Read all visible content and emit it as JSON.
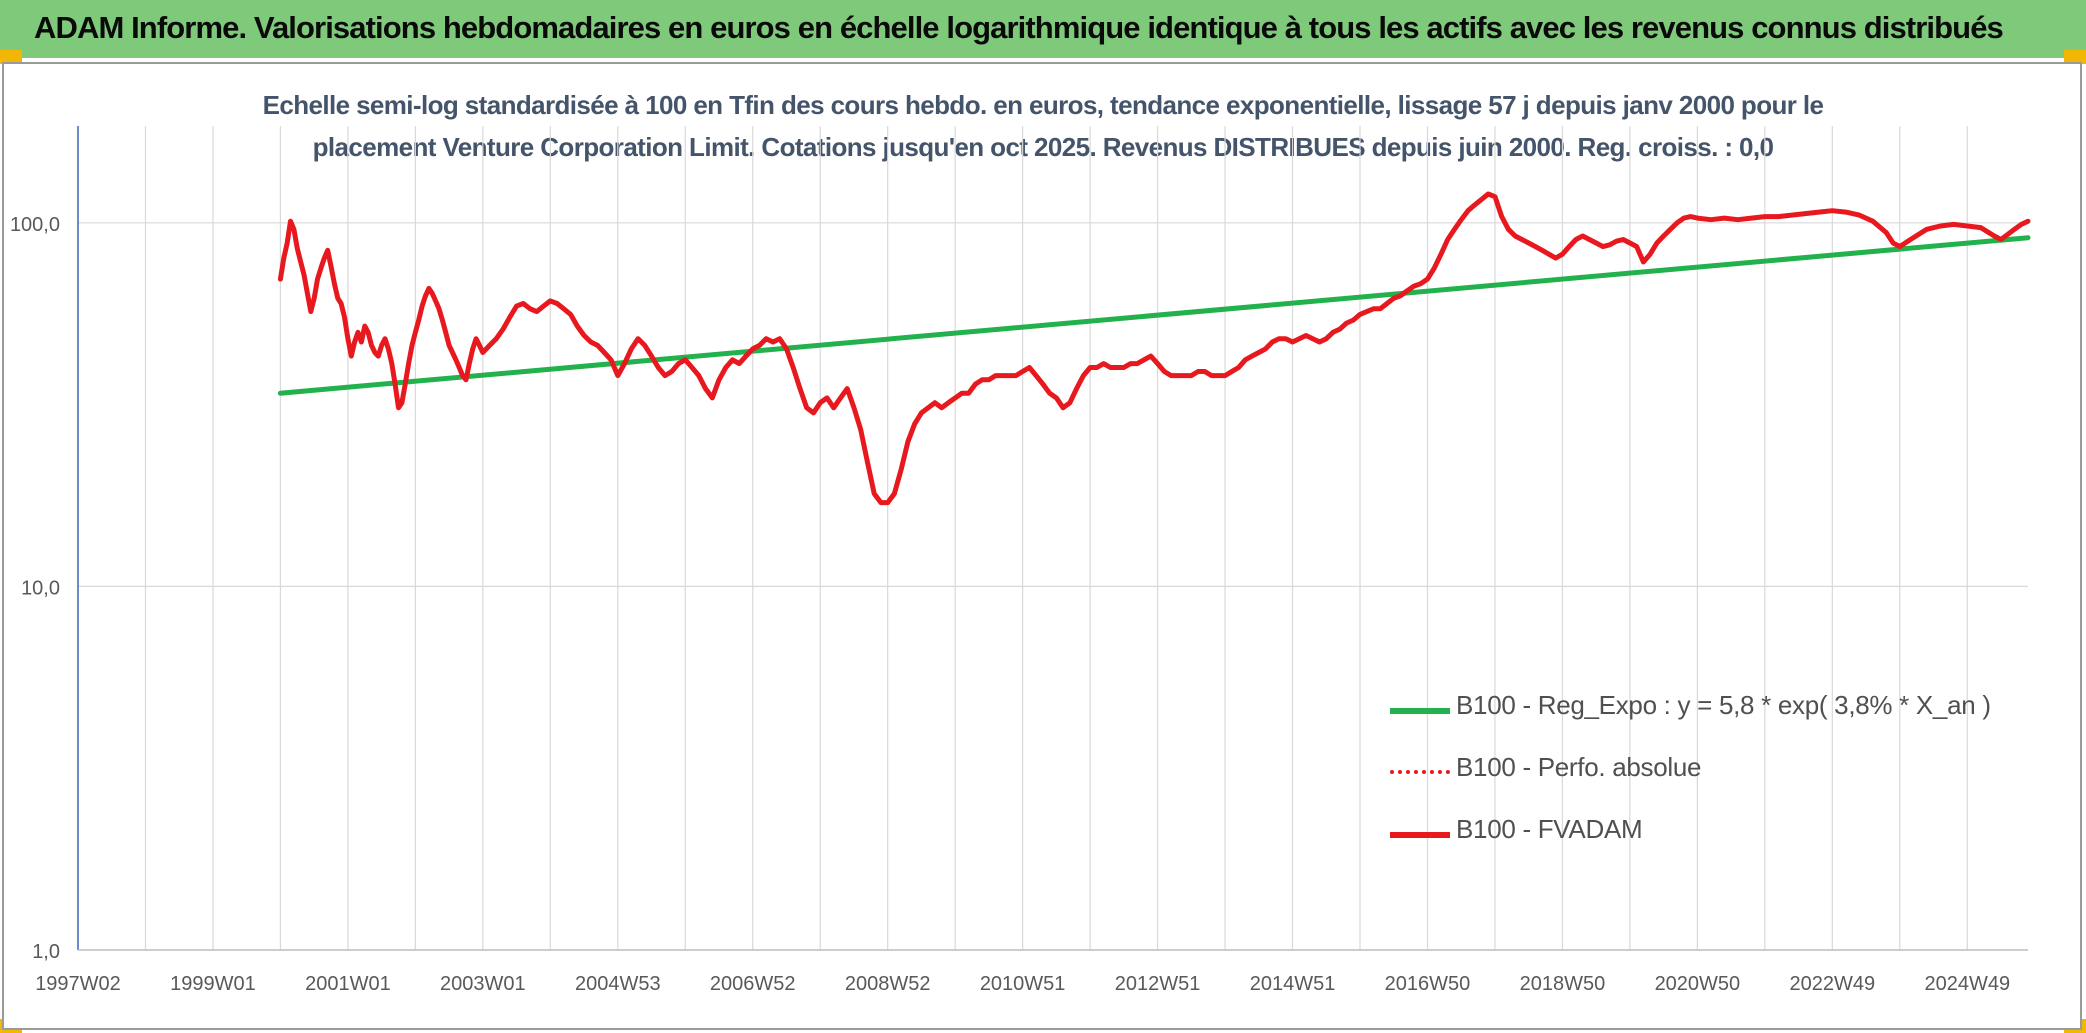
{
  "header": {
    "title": "ADAM Informe. Valorisations hebdomadaires en euros en échelle logarithmique identique à tous les actifs avec les revenus connus distribués"
  },
  "chart_title": {
    "line1": "Echelle semi-log standardisée à 100 en Tfin des cours hebdo. en euros, tendance exponentielle, lissage 57 j depuis janv 2000 pour le",
    "line2": "placement Venture Corporation Limit. Cotations jusqu'en oct 2025. Revenus DISTRIBUES depuis juin 2000. Reg. croiss. : 0,0"
  },
  "chart_data": {
    "type": "line",
    "y_scale": "log",
    "ylim": [
      1,
      180
    ],
    "y_ticks": [
      {
        "value": 1,
        "label": "1,0"
      },
      {
        "value": 10,
        "label": "10,0"
      },
      {
        "value": 100,
        "label": "100,0"
      }
    ],
    "x_start": 1997.0,
    "x_end": 2025.9,
    "x_ticks": [
      {
        "x": 1997.0,
        "label": "1997W02"
      },
      {
        "x": 1999.0,
        "label": "1999W01"
      },
      {
        "x": 2001.0,
        "label": "2001W01"
      },
      {
        "x": 2003.0,
        "label": "2003W01"
      },
      {
        "x": 2005.0,
        "label": "2004W53"
      },
      {
        "x": 2007.0,
        "label": "2006W52"
      },
      {
        "x": 2009.0,
        "label": "2008W52"
      },
      {
        "x": 2011.0,
        "label": "2010W51"
      },
      {
        "x": 2013.0,
        "label": "2012W51"
      },
      {
        "x": 2015.0,
        "label": "2014W51"
      },
      {
        "x": 2017.0,
        "label": "2016W50"
      },
      {
        "x": 2019.0,
        "label": "2018W50"
      },
      {
        "x": 2021.0,
        "label": "2020W50"
      },
      {
        "x": 2023.0,
        "label": "2022W49"
      },
      {
        "x": 2025.0,
        "label": "2024W49"
      }
    ],
    "grid": "vertical every year, horizontal at y ticks",
    "legend_position": "bottom-right inside plot",
    "series": [
      {
        "name": "B100 - Reg_Expo : y = 5,8 * exp( 3,8% *  X_an )",
        "color": "#22b14c",
        "style": "solid",
        "points": [
          [
            2000.0,
            34.0
          ],
          [
            2025.9,
            91.0
          ]
        ]
      },
      {
        "name": "B100 - Perfo. absolue",
        "color": "#e8191e",
        "style": "dotted",
        "points": []
      },
      {
        "name": "B100 - FVADAM",
        "color": "#e8191e",
        "style": "solid",
        "points": [
          [
            2000.0,
            70
          ],
          [
            2000.05,
            80
          ],
          [
            2000.1,
            88
          ],
          [
            2000.15,
            101
          ],
          [
            2000.2,
            96
          ],
          [
            2000.25,
            85
          ],
          [
            2000.3,
            78
          ],
          [
            2000.35,
            72
          ],
          [
            2000.4,
            64
          ],
          [
            2000.45,
            57
          ],
          [
            2000.5,
            62
          ],
          [
            2000.55,
            70
          ],
          [
            2000.6,
            75
          ],
          [
            2000.65,
            80
          ],
          [
            2000.7,
            84
          ],
          [
            2000.75,
            76
          ],
          [
            2000.8,
            68
          ],
          [
            2000.85,
            62
          ],
          [
            2000.9,
            60
          ],
          [
            2000.95,
            55
          ],
          [
            2001.0,
            48
          ],
          [
            2001.05,
            43
          ],
          [
            2001.1,
            47
          ],
          [
            2001.15,
            50
          ],
          [
            2001.2,
            47
          ],
          [
            2001.25,
            52
          ],
          [
            2001.3,
            50
          ],
          [
            2001.35,
            46
          ],
          [
            2001.4,
            44
          ],
          [
            2001.45,
            43
          ],
          [
            2001.5,
            46
          ],
          [
            2001.55,
            48
          ],
          [
            2001.6,
            45
          ],
          [
            2001.65,
            41
          ],
          [
            2001.7,
            36
          ],
          [
            2001.75,
            31
          ],
          [
            2001.8,
            32
          ],
          [
            2001.85,
            36
          ],
          [
            2001.9,
            41
          ],
          [
            2001.95,
            46
          ],
          [
            2002.0,
            50
          ],
          [
            2002.05,
            54
          ],
          [
            2002.1,
            59
          ],
          [
            2002.15,
            63
          ],
          [
            2002.2,
            66
          ],
          [
            2002.25,
            64
          ],
          [
            2002.3,
            61
          ],
          [
            2002.35,
            58
          ],
          [
            2002.4,
            54
          ],
          [
            2002.45,
            50
          ],
          [
            2002.5,
            46
          ],
          [
            2002.55,
            44
          ],
          [
            2002.6,
            42
          ],
          [
            2002.65,
            40
          ],
          [
            2002.7,
            38
          ],
          [
            2002.75,
            37
          ],
          [
            2002.8,
            41
          ],
          [
            2002.85,
            45
          ],
          [
            2002.9,
            48
          ],
          [
            2002.95,
            46
          ],
          [
            2003.0,
            44
          ],
          [
            2003.1,
            46
          ],
          [
            2003.2,
            48
          ],
          [
            2003.3,
            51
          ],
          [
            2003.4,
            55
          ],
          [
            2003.5,
            59
          ],
          [
            2003.6,
            60
          ],
          [
            2003.7,
            58
          ],
          [
            2003.8,
            57
          ],
          [
            2003.9,
            59
          ],
          [
            2004.0,
            61
          ],
          [
            2004.1,
            60
          ],
          [
            2004.2,
            58
          ],
          [
            2004.3,
            56
          ],
          [
            2004.4,
            52
          ],
          [
            2004.5,
            49
          ],
          [
            2004.6,
            47
          ],
          [
            2004.7,
            46
          ],
          [
            2004.8,
            44
          ],
          [
            2004.9,
            42
          ],
          [
            2005.0,
            38
          ],
          [
            2005.1,
            41
          ],
          [
            2005.2,
            45
          ],
          [
            2005.3,
            48
          ],
          [
            2005.4,
            46
          ],
          [
            2005.5,
            43
          ],
          [
            2005.6,
            40
          ],
          [
            2005.7,
            38
          ],
          [
            2005.8,
            39
          ],
          [
            2005.9,
            41
          ],
          [
            2006.0,
            42
          ],
          [
            2006.1,
            40
          ],
          [
            2006.2,
            38
          ],
          [
            2006.3,
            35
          ],
          [
            2006.4,
            33
          ],
          [
            2006.5,
            37
          ],
          [
            2006.6,
            40
          ],
          [
            2006.7,
            42
          ],
          [
            2006.8,
            41
          ],
          [
            2006.9,
            43
          ],
          [
            2007.0,
            45
          ],
          [
            2007.1,
            46
          ],
          [
            2007.2,
            48
          ],
          [
            2007.3,
            47
          ],
          [
            2007.4,
            48
          ],
          [
            2007.5,
            45
          ],
          [
            2007.6,
            40
          ],
          [
            2007.7,
            35
          ],
          [
            2007.8,
            31
          ],
          [
            2007.9,
            30
          ],
          [
            2008.0,
            32
          ],
          [
            2008.1,
            33
          ],
          [
            2008.2,
            31
          ],
          [
            2008.3,
            33
          ],
          [
            2008.4,
            35
          ],
          [
            2008.5,
            31
          ],
          [
            2008.6,
            27
          ],
          [
            2008.7,
            22
          ],
          [
            2008.8,
            18
          ],
          [
            2008.9,
            17
          ],
          [
            2009.0,
            17
          ],
          [
            2009.1,
            18
          ],
          [
            2009.2,
            21
          ],
          [
            2009.3,
            25
          ],
          [
            2009.4,
            28
          ],
          [
            2009.5,
            30
          ],
          [
            2009.6,
            31
          ],
          [
            2009.7,
            32
          ],
          [
            2009.8,
            31
          ],
          [
            2009.9,
            32
          ],
          [
            2010.0,
            33
          ],
          [
            2010.1,
            34
          ],
          [
            2010.2,
            34
          ],
          [
            2010.3,
            36
          ],
          [
            2010.4,
            37
          ],
          [
            2010.5,
            37
          ],
          [
            2010.6,
            38
          ],
          [
            2010.7,
            38
          ],
          [
            2010.8,
            38
          ],
          [
            2010.9,
            38
          ],
          [
            2011.0,
            39
          ],
          [
            2011.1,
            40
          ],
          [
            2011.2,
            38
          ],
          [
            2011.3,
            36
          ],
          [
            2011.4,
            34
          ],
          [
            2011.5,
            33
          ],
          [
            2011.6,
            31
          ],
          [
            2011.7,
            32
          ],
          [
            2011.8,
            35
          ],
          [
            2011.9,
            38
          ],
          [
            2012.0,
            40
          ],
          [
            2012.1,
            40
          ],
          [
            2012.2,
            41
          ],
          [
            2012.3,
            40
          ],
          [
            2012.4,
            40
          ],
          [
            2012.5,
            40
          ],
          [
            2012.6,
            41
          ],
          [
            2012.7,
            41
          ],
          [
            2012.8,
            42
          ],
          [
            2012.9,
            43
          ],
          [
            2013.0,
            41
          ],
          [
            2013.1,
            39
          ],
          [
            2013.2,
            38
          ],
          [
            2013.3,
            38
          ],
          [
            2013.4,
            38
          ],
          [
            2013.5,
            38
          ],
          [
            2013.6,
            39
          ],
          [
            2013.7,
            39
          ],
          [
            2013.8,
            38
          ],
          [
            2013.9,
            38
          ],
          [
            2014.0,
            38
          ],
          [
            2014.1,
            39
          ],
          [
            2014.2,
            40
          ],
          [
            2014.3,
            42
          ],
          [
            2014.4,
            43
          ],
          [
            2014.5,
            44
          ],
          [
            2014.6,
            45
          ],
          [
            2014.7,
            47
          ],
          [
            2014.8,
            48
          ],
          [
            2014.9,
            48
          ],
          [
            2015.0,
            47
          ],
          [
            2015.1,
            48
          ],
          [
            2015.2,
            49
          ],
          [
            2015.3,
            48
          ],
          [
            2015.4,
            47
          ],
          [
            2015.5,
            48
          ],
          [
            2015.6,
            50
          ],
          [
            2015.7,
            51
          ],
          [
            2015.8,
            53
          ],
          [
            2015.9,
            54
          ],
          [
            2016.0,
            56
          ],
          [
            2016.1,
            57
          ],
          [
            2016.2,
            58
          ],
          [
            2016.3,
            58
          ],
          [
            2016.4,
            60
          ],
          [
            2016.5,
            62
          ],
          [
            2016.6,
            63
          ],
          [
            2016.7,
            65
          ],
          [
            2016.8,
            67
          ],
          [
            2016.9,
            68
          ],
          [
            2017.0,
            70
          ],
          [
            2017.1,
            75
          ],
          [
            2017.2,
            82
          ],
          [
            2017.3,
            90
          ],
          [
            2017.4,
            96
          ],
          [
            2017.5,
            102
          ],
          [
            2017.6,
            108
          ],
          [
            2017.7,
            112
          ],
          [
            2017.8,
            116
          ],
          [
            2017.9,
            120
          ],
          [
            2018.0,
            118
          ],
          [
            2018.1,
            104
          ],
          [
            2018.2,
            96
          ],
          [
            2018.3,
            92
          ],
          [
            2018.4,
            90
          ],
          [
            2018.5,
            88
          ],
          [
            2018.6,
            86
          ],
          [
            2018.7,
            84
          ],
          [
            2018.8,
            82
          ],
          [
            2018.9,
            80
          ],
          [
            2019.0,
            82
          ],
          [
            2019.1,
            86
          ],
          [
            2019.2,
            90
          ],
          [
            2019.3,
            92
          ],
          [
            2019.4,
            90
          ],
          [
            2019.5,
            88
          ],
          [
            2019.6,
            86
          ],
          [
            2019.7,
            87
          ],
          [
            2019.8,
            89
          ],
          [
            2019.9,
            90
          ],
          [
            2020.0,
            88
          ],
          [
            2020.1,
            86
          ],
          [
            2020.2,
            78
          ],
          [
            2020.3,
            82
          ],
          [
            2020.4,
            88
          ],
          [
            2020.5,
            92
          ],
          [
            2020.6,
            96
          ],
          [
            2020.7,
            100
          ],
          [
            2020.8,
            103
          ],
          [
            2020.9,
            104
          ],
          [
            2021.0,
            103
          ],
          [
            2021.2,
            102
          ],
          [
            2021.4,
            103
          ],
          [
            2021.6,
            102
          ],
          [
            2021.8,
            103
          ],
          [
            2022.0,
            104
          ],
          [
            2022.2,
            104
          ],
          [
            2022.4,
            105
          ],
          [
            2022.6,
            106
          ],
          [
            2022.8,
            107
          ],
          [
            2023.0,
            108
          ],
          [
            2023.2,
            107
          ],
          [
            2023.4,
            105
          ],
          [
            2023.6,
            101
          ],
          [
            2023.8,
            94
          ],
          [
            2023.9,
            88
          ],
          [
            2024.0,
            86
          ],
          [
            2024.2,
            91
          ],
          [
            2024.4,
            96
          ],
          [
            2024.6,
            98
          ],
          [
            2024.8,
            99
          ],
          [
            2025.0,
            98
          ],
          [
            2025.2,
            97
          ],
          [
            2025.4,
            92
          ],
          [
            2025.5,
            90
          ],
          [
            2025.6,
            93
          ],
          [
            2025.7,
            96
          ],
          [
            2025.8,
            99
          ],
          [
            2025.9,
            101
          ]
        ]
      }
    ]
  },
  "colors": {
    "banner_bg": "#7fc97a",
    "corner": "#f2b705",
    "trend": "#22b14c",
    "price": "#e8191e",
    "grid": "#d9d9d9",
    "axis": "#4472c4",
    "title_text": "#44546a",
    "label_text": "#595959"
  }
}
